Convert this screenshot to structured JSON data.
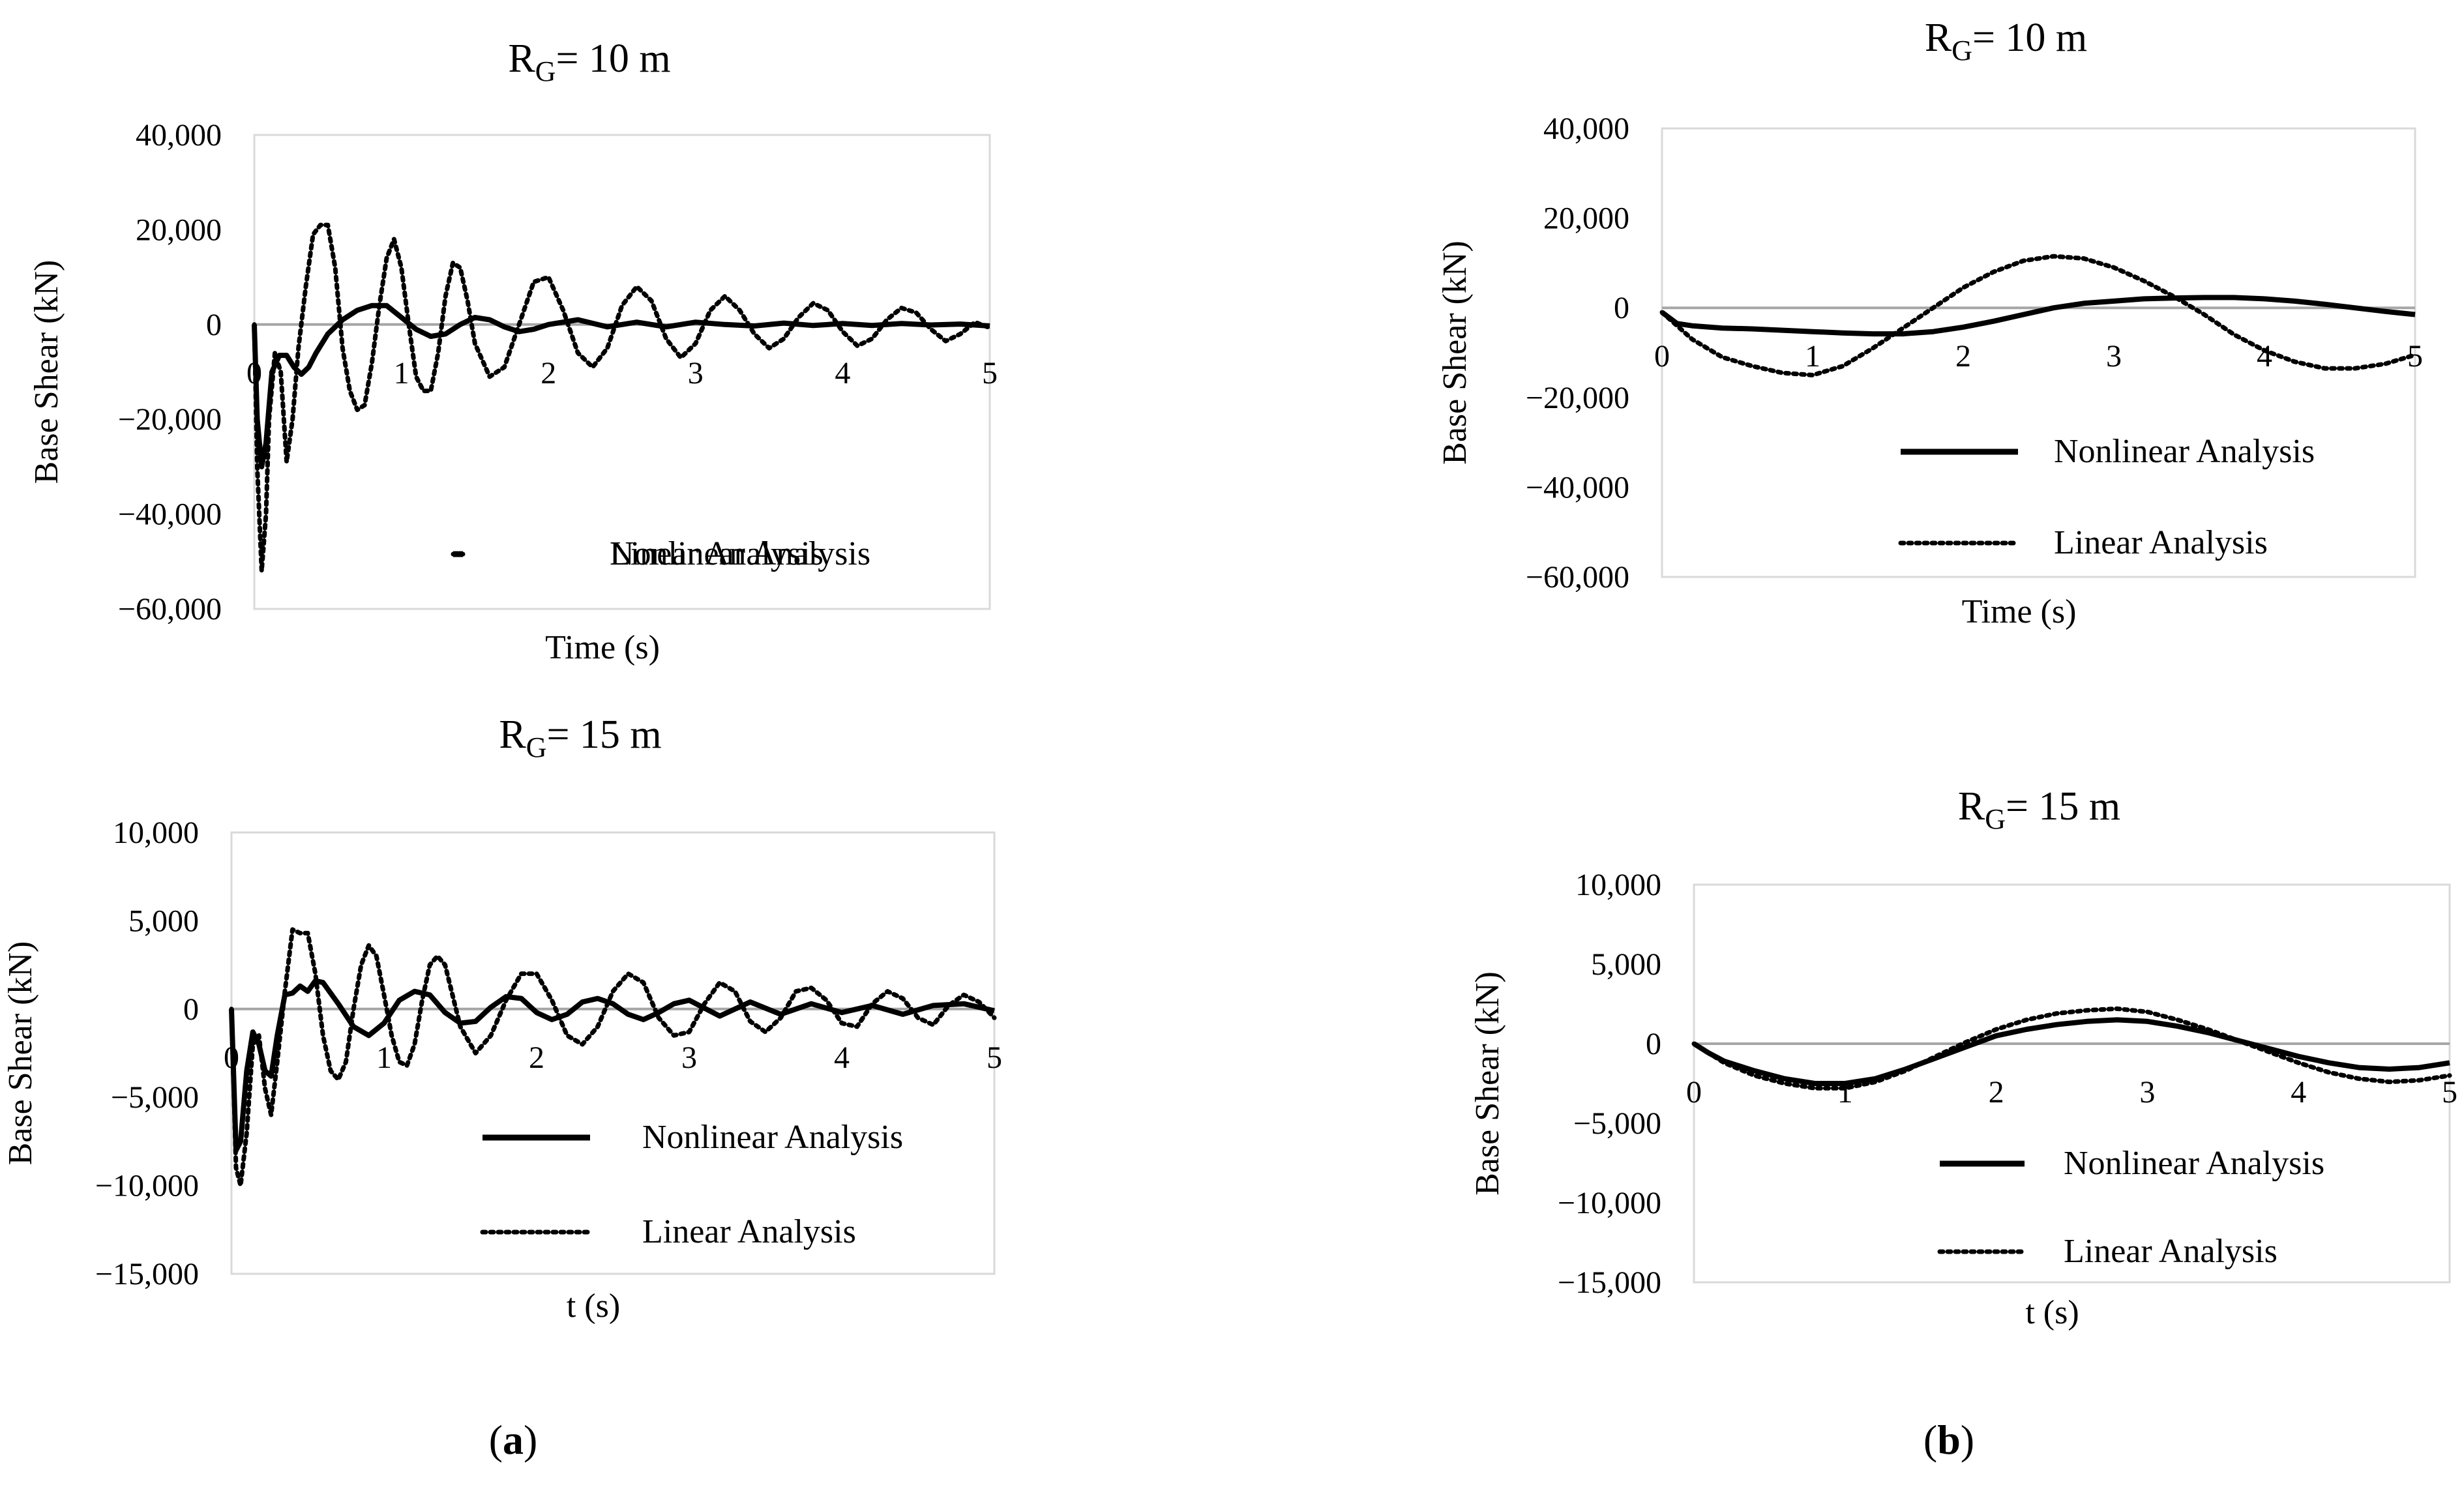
{
  "figure": {
    "panel_labels": [
      {
        "open": "(",
        "letter": "a",
        "close": ")"
      },
      {
        "open": "(",
        "letter": "b",
        "close": ")"
      }
    ]
  },
  "chart_data": [
    {
      "type": "line",
      "panel": "a",
      "title": {
        "main": "R",
        "sub": "G",
        "rest": "= 10 m"
      },
      "xlabel": "Time (s)",
      "ylabel": "Base Shear (kN)",
      "xlim": [
        0,
        5
      ],
      "ylim": [
        -60000,
        40000
      ],
      "xticks": [
        0,
        1,
        2,
        3,
        4,
        5
      ],
      "xtick_labels": [
        "0",
        "1",
        "2",
        "3",
        "4",
        "5"
      ],
      "yticks": [
        -60000,
        -40000,
        -20000,
        0,
        20000,
        40000
      ],
      "ytick_labels": [
        "−60,000",
        "−40,000",
        "−20,000",
        "0",
        "20,000",
        "40,000"
      ],
      "legend": [
        {
          "label": "Nonlinear Analysis",
          "style": "solid"
        },
        {
          "label": "Linear Analysis",
          "style": "dotted"
        }
      ],
      "series": [
        {
          "name": "Nonlinear Analysis",
          "style": "solid",
          "x": [
            0,
            0.02,
            0.05,
            0.08,
            0.12,
            0.17,
            0.22,
            0.27,
            0.32,
            0.37,
            0.42,
            0.5,
            0.6,
            0.7,
            0.8,
            0.9,
            1.0,
            1.1,
            1.2,
            1.3,
            1.4,
            1.5,
            1.6,
            1.7,
            1.8,
            1.9,
            2.0,
            2.2,
            2.4,
            2.6,
            2.8,
            3.0,
            3.2,
            3.4,
            3.6,
            3.8,
            4.0,
            4.2,
            4.4,
            4.6,
            4.8,
            5.0
          ],
          "y": [
            0,
            -20000,
            -30000,
            -25000,
            -10000,
            -6500,
            -6500,
            -9000,
            -10500,
            -9000,
            -6000,
            -2000,
            1000,
            3000,
            4000,
            4000,
            1500,
            -1000,
            -2500,
            -2000,
            0,
            1500,
            1000,
            -500,
            -1500,
            -1000,
            0,
            1000,
            -500,
            500,
            -500,
            500,
            0,
            -300,
            300,
            -200,
            200,
            -200,
            200,
            -100,
            100,
            -300
          ]
        },
        {
          "name": "Linear Analysis",
          "style": "dotted",
          "x": [
            0,
            0.02,
            0.05,
            0.08,
            0.1,
            0.14,
            0.18,
            0.22,
            0.26,
            0.3,
            0.35,
            0.4,
            0.45,
            0.5,
            0.55,
            0.6,
            0.65,
            0.7,
            0.75,
            0.8,
            0.85,
            0.9,
            0.95,
            1.0,
            1.05,
            1.1,
            1.15,
            1.2,
            1.25,
            1.3,
            1.35,
            1.4,
            1.45,
            1.5,
            1.6,
            1.7,
            1.8,
            1.9,
            2.0,
            2.1,
            2.2,
            2.3,
            2.4,
            2.5,
            2.6,
            2.7,
            2.8,
            2.9,
            3.0,
            3.1,
            3.2,
            3.3,
            3.4,
            3.5,
            3.6,
            3.7,
            3.8,
            3.9,
            4.0,
            4.1,
            4.2,
            4.3,
            4.4,
            4.5,
            4.6,
            4.7,
            4.8,
            4.9,
            5.0
          ],
          "y": [
            0,
            -30000,
            -52000,
            -40000,
            -20000,
            -6000,
            -10000,
            -29000,
            -20000,
            -5000,
            8000,
            19000,
            21000,
            21000,
            12000,
            -5000,
            -14000,
            -18000,
            -17000,
            -8000,
            4000,
            14000,
            18000,
            12000,
            0,
            -11000,
            -14000,
            -14000,
            -6000,
            6000,
            13000,
            12000,
            5000,
            -4000,
            -11000,
            -9000,
            0,
            9000,
            10000,
            3000,
            -6000,
            -9000,
            -5000,
            4000,
            8000,
            5000,
            -3000,
            -7000,
            -4000,
            3000,
            6000,
            3000,
            -2000,
            -5000,
            -3000,
            1500,
            4500,
            3000,
            -1500,
            -4500,
            -3000,
            1000,
            3500,
            2500,
            -1000,
            -3500,
            -2000,
            500,
            -700
          ]
        }
      ]
    },
    {
      "type": "line",
      "panel": "a",
      "title": {
        "main": "R",
        "sub": "G",
        "rest": "= 15 m"
      },
      "xlabel": "t (s)",
      "ylabel": "Base Shear (kN)",
      "xlim": [
        0,
        5
      ],
      "ylim": [
        -15000,
        10000
      ],
      "xticks": [
        0,
        1,
        2,
        3,
        4,
        5
      ],
      "xtick_labels": [
        "0",
        "1",
        "2",
        "3",
        "4",
        "5"
      ],
      "yticks": [
        -15000,
        -10000,
        -5000,
        0,
        5000,
        10000
      ],
      "ytick_labels": [
        "−15,000",
        "−10,000",
        "−5,000",
        "0",
        "5,000",
        "10,000"
      ],
      "legend": [
        {
          "label": "Nonlinear Analysis",
          "style": "solid"
        },
        {
          "label": "Linear Analysis",
          "style": "dotted"
        }
      ],
      "series": [
        {
          "name": "Nonlinear Analysis",
          "style": "solid",
          "x": [
            0,
            0.03,
            0.06,
            0.1,
            0.14,
            0.18,
            0.22,
            0.26,
            0.3,
            0.35,
            0.4,
            0.45,
            0.5,
            0.55,
            0.6,
            0.7,
            0.8,
            0.9,
            1.0,
            1.1,
            1.2,
            1.3,
            1.4,
            1.5,
            1.6,
            1.7,
            1.8,
            1.9,
            2.0,
            2.1,
            2.2,
            2.3,
            2.4,
            2.5,
            2.6,
            2.7,
            2.8,
            2.9,
            3.0,
            3.2,
            3.4,
            3.6,
            3.8,
            4.0,
            4.2,
            4.4,
            4.6,
            4.8,
            5.0
          ],
          "y": [
            0,
            -8000,
            -7500,
            -3500,
            -1300,
            -2000,
            -3500,
            -3800,
            -1500,
            800,
            900,
            1300,
            1000,
            1600,
            1500,
            300,
            -1000,
            -1500,
            -800,
            500,
            1000,
            800,
            -200,
            -800,
            -700,
            100,
            700,
            600,
            -200,
            -600,
            -300,
            400,
            600,
            300,
            -300,
            -600,
            -200,
            300,
            500,
            -400,
            400,
            -300,
            300,
            -200,
            200,
            -300,
            200,
            300,
            -100
          ]
        },
        {
          "name": "Linear Analysis",
          "style": "dotted",
          "x": [
            0,
            0.03,
            0.06,
            0.1,
            0.14,
            0.18,
            0.22,
            0.26,
            0.3,
            0.35,
            0.4,
            0.45,
            0.5,
            0.55,
            0.6,
            0.65,
            0.7,
            0.75,
            0.8,
            0.85,
            0.9,
            0.95,
            1.0,
            1.05,
            1.1,
            1.15,
            1.2,
            1.25,
            1.3,
            1.35,
            1.4,
            1.5,
            1.6,
            1.7,
            1.8,
            1.9,
            2.0,
            2.1,
            2.2,
            2.3,
            2.4,
            2.5,
            2.6,
            2.7,
            2.8,
            2.9,
            3.0,
            3.1,
            3.2,
            3.3,
            3.4,
            3.5,
            3.6,
            3.7,
            3.8,
            3.9,
            4.0,
            4.1,
            4.2,
            4.3,
            4.4,
            4.5,
            4.6,
            4.7,
            4.8,
            4.9,
            5.0
          ],
          "y": [
            0,
            -9000,
            -10000,
            -7000,
            -2000,
            -1500,
            -4500,
            -6000,
            -3000,
            1000,
            4500,
            4300,
            4300,
            2000,
            -1500,
            -3500,
            -4000,
            -3000,
            0,
            2500,
            3600,
            3000,
            800,
            -1500,
            -3000,
            -3200,
            -2000,
            500,
            2500,
            3000,
            2500,
            -1000,
            -2500,
            -1500,
            500,
            2000,
            2000,
            500,
            -1500,
            -2000,
            -1000,
            1000,
            2000,
            1500,
            -500,
            -1500,
            -1300,
            300,
            1500,
            1000,
            -700,
            -1300,
            -500,
            1000,
            1200,
            500,
            -800,
            -1000,
            300,
            1000,
            600,
            -500,
            -900,
            200,
            800,
            400,
            -500
          ]
        }
      ]
    },
    {
      "type": "line",
      "panel": "b",
      "title": {
        "main": "R",
        "sub": "G",
        "rest": "= 10 m"
      },
      "xlabel": "Time (s)",
      "ylabel": "Base Shear (kN)",
      "xlim": [
        0,
        5
      ],
      "ylim": [
        -60000,
        40000
      ],
      "xticks": [
        0,
        1,
        2,
        3,
        4,
        5
      ],
      "xtick_labels": [
        "0",
        "1",
        "2",
        "3",
        "4",
        "5"
      ],
      "yticks": [
        -60000,
        -40000,
        -20000,
        0,
        20000,
        40000
      ],
      "ytick_labels": [
        "−60,000",
        "−40,000",
        "−20,000",
        "0",
        "20,000",
        "40,000"
      ],
      "legend": [
        {
          "label": "Nonlinear Analysis",
          "style": "solid"
        },
        {
          "label": "Linear Analysis",
          "style": "dotted"
        }
      ],
      "series": [
        {
          "name": "Nonlinear Analysis",
          "style": "solid",
          "x": [
            0,
            0.1,
            0.2,
            0.4,
            0.6,
            0.8,
            1.0,
            1.2,
            1.4,
            1.6,
            1.8,
            2.0,
            2.2,
            2.4,
            2.6,
            2.8,
            3.0,
            3.2,
            3.4,
            3.6,
            3.8,
            4.0,
            4.2,
            4.4,
            4.6,
            4.8,
            5.0
          ],
          "y": [
            -1000,
            -3500,
            -4000,
            -4500,
            -4700,
            -5000,
            -5300,
            -5600,
            -5800,
            -5800,
            -5300,
            -4300,
            -3000,
            -1500,
            0,
            1000,
            1500,
            2000,
            2200,
            2300,
            2300,
            2000,
            1500,
            800,
            0,
            -800,
            -1500
          ]
        },
        {
          "name": "Linear Analysis",
          "style": "dotted",
          "x": [
            0,
            0.1,
            0.2,
            0.4,
            0.6,
            0.8,
            1.0,
            1.2,
            1.4,
            1.6,
            1.8,
            2.0,
            2.2,
            2.4,
            2.6,
            2.8,
            3.0,
            3.2,
            3.4,
            3.6,
            3.8,
            4.0,
            4.2,
            4.4,
            4.6,
            4.8,
            5.0
          ],
          "y": [
            -1000,
            -4000,
            -7000,
            -11000,
            -13000,
            -14500,
            -15000,
            -13000,
            -9000,
            -4500,
            0,
            4500,
            8000,
            10500,
            11500,
            11000,
            9000,
            6000,
            2500,
            -1500,
            -6000,
            -9500,
            -12000,
            -13500,
            -13500,
            -12500,
            -10500
          ]
        }
      ]
    },
    {
      "type": "line",
      "panel": "b",
      "title": {
        "main": "R",
        "sub": "G",
        "rest": "= 15 m"
      },
      "xlabel": "t (s)",
      "ylabel": "Base Shear (kN)",
      "xlim": [
        0,
        5
      ],
      "ylim": [
        -15000,
        10000
      ],
      "xticks": [
        0,
        1,
        2,
        3,
        4,
        5
      ],
      "xtick_labels": [
        "0",
        "1",
        "2",
        "3",
        "4",
        "5"
      ],
      "yticks": [
        -15000,
        -10000,
        -5000,
        0,
        5000,
        10000
      ],
      "ytick_labels": [
        "−15,000",
        "−10,000",
        "−5,000",
        "0",
        "5,000",
        "10,000"
      ],
      "legend": [
        {
          "label": "Nonlinear Analysis",
          "style": "solid"
        },
        {
          "label": "Linear Analysis",
          "style": "dotted"
        }
      ],
      "series": [
        {
          "name": "Nonlinear Analysis",
          "style": "solid",
          "x": [
            0,
            0.1,
            0.2,
            0.4,
            0.6,
            0.8,
            1.0,
            1.2,
            1.4,
            1.6,
            1.8,
            2.0,
            2.2,
            2.4,
            2.6,
            2.8,
            3.0,
            3.2,
            3.4,
            3.6,
            3.8,
            4.0,
            4.2,
            4.4,
            4.6,
            4.8,
            5.0
          ],
          "y": [
            0,
            -600,
            -1100,
            -1700,
            -2200,
            -2500,
            -2500,
            -2200,
            -1600,
            -900,
            -200,
            500,
            900,
            1200,
            1400,
            1500,
            1400,
            1100,
            700,
            200,
            -300,
            -800,
            -1200,
            -1500,
            -1600,
            -1500,
            -1200
          ]
        },
        {
          "name": "Linear Analysis",
          "style": "dotted",
          "x": [
            0,
            0.1,
            0.2,
            0.4,
            0.6,
            0.8,
            1.0,
            1.2,
            1.4,
            1.6,
            1.8,
            2.0,
            2.2,
            2.4,
            2.6,
            2.8,
            3.0,
            3.2,
            3.4,
            3.6,
            3.8,
            4.0,
            4.2,
            4.4,
            4.6,
            4.8,
            5.0
          ],
          "y": [
            0,
            -600,
            -1200,
            -2000,
            -2500,
            -2800,
            -2800,
            -2400,
            -1700,
            -800,
            100,
            900,
            1500,
            1900,
            2100,
            2200,
            2000,
            1500,
            900,
            200,
            -500,
            -1200,
            -1800,
            -2200,
            -2400,
            -2300,
            -2000
          ]
        }
      ]
    }
  ]
}
